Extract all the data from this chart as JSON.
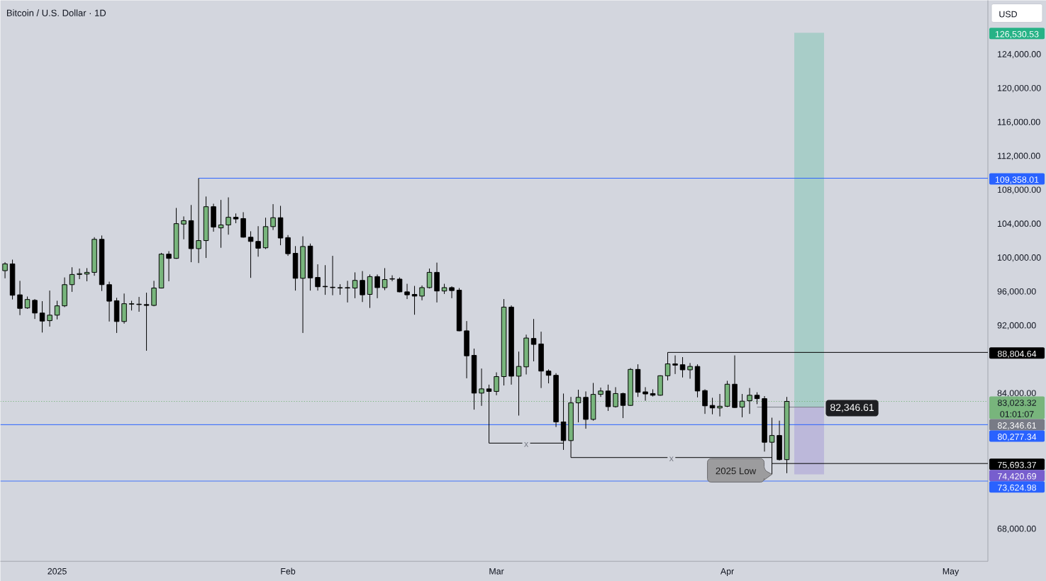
{
  "chart_data": {
    "type": "candlestick",
    "title": "Bitcoin / U.S. Dollar · 1D",
    "ylabel": "USD",
    "x": [
      "2024-12-25",
      "2024-12-26",
      "2024-12-27",
      "2024-12-28",
      "2024-12-29",
      "2024-12-30",
      "2024-12-31",
      "2025-01-01",
      "2025-01-02",
      "2025-01-03",
      "2025-01-04",
      "2025-01-05",
      "2025-01-06",
      "2025-01-07",
      "2025-01-08",
      "2025-01-09",
      "2025-01-10",
      "2025-01-11",
      "2025-01-12",
      "2025-01-13",
      "2025-01-14",
      "2025-01-15",
      "2025-01-16",
      "2025-01-17",
      "2025-01-18",
      "2025-01-19",
      "2025-01-20",
      "2025-01-21",
      "2025-01-22",
      "2025-01-23",
      "2025-01-24",
      "2025-01-25",
      "2025-01-26",
      "2025-01-27",
      "2025-01-28",
      "2025-01-29",
      "2025-01-30",
      "2025-01-31",
      "2025-02-01",
      "2025-02-02",
      "2025-02-03",
      "2025-02-04",
      "2025-02-05",
      "2025-02-06",
      "2025-02-07",
      "2025-02-08",
      "2025-02-09",
      "2025-02-10",
      "2025-02-11",
      "2025-02-12",
      "2025-02-13",
      "2025-02-14",
      "2025-02-15",
      "2025-02-16",
      "2025-02-17",
      "2025-02-18",
      "2025-02-19",
      "2025-02-20",
      "2025-02-21",
      "2025-02-22",
      "2025-02-23",
      "2025-02-24",
      "2025-02-25",
      "2025-02-26",
      "2025-02-27",
      "2025-02-28",
      "2025-03-01",
      "2025-03-02",
      "2025-03-03",
      "2025-03-04",
      "2025-03-05",
      "2025-03-06",
      "2025-03-07",
      "2025-03-08",
      "2025-03-09",
      "2025-03-10",
      "2025-03-11",
      "2025-03-12",
      "2025-03-13",
      "2025-03-14",
      "2025-03-15",
      "2025-03-16",
      "2025-03-17",
      "2025-03-18",
      "2025-03-19",
      "2025-03-20",
      "2025-03-21",
      "2025-03-22",
      "2025-03-23",
      "2025-03-24",
      "2025-03-25",
      "2025-03-26",
      "2025-03-27",
      "2025-03-28",
      "2025-03-29",
      "2025-03-30",
      "2025-03-31",
      "2025-04-01",
      "2025-04-02",
      "2025-04-03",
      "2025-04-04",
      "2025-04-05",
      "2025-04-06",
      "2025-04-07",
      "2025-04-08",
      "2025-04-09"
    ],
    "ohlc": [
      [
        98450,
        99450,
        97550,
        99250
      ],
      [
        99250,
        99750,
        95050,
        95550
      ],
      [
        95600,
        97250,
        93200,
        94000
      ],
      [
        94050,
        95400,
        93950,
        95050
      ],
      [
        94950,
        95100,
        92750,
        93450
      ],
      [
        93450,
        94850,
        91150,
        92500
      ],
      [
        92550,
        96100,
        91850,
        93200
      ],
      [
        93200,
        94900,
        92700,
        94300
      ],
      [
        94300,
        97650,
        94150,
        96800
      ],
      [
        96800,
        98850,
        95950,
        98000
      ],
      [
        98000,
        98700,
        97450,
        98100
      ],
      [
        98050,
        98750,
        97200,
        98250
      ],
      [
        98250,
        102400,
        97850,
        102150
      ],
      [
        102150,
        102600,
        96050,
        96800
      ],
      [
        96800,
        97150,
        92450,
        94850
      ],
      [
        94900,
        95250,
        91100,
        92450
      ],
      [
        92450,
        95750,
        92200,
        94550
      ],
      [
        94500,
        94900,
        93750,
        94550
      ],
      [
        94500,
        95350,
        93600,
        94450
      ],
      [
        94450,
        95850,
        89000,
        94350
      ],
      [
        94350,
        97250,
        94250,
        96400
      ],
      [
        96400,
        100550,
        96350,
        100400
      ],
      [
        100400,
        100750,
        97200,
        99900
      ],
      [
        99900,
        105850,
        99850,
        104000
      ],
      [
        103950,
        104850,
        102150,
        104350
      ],
      [
        104350,
        106200,
        99450,
        101050
      ],
      [
        101050,
        109358.01,
        99350,
        102000
      ],
      [
        102000,
        107200,
        99950,
        106000
      ],
      [
        106000,
        106350,
        103050,
        103600
      ],
      [
        103500,
        106800,
        101150,
        103850
      ],
      [
        103850,
        107100,
        102700,
        104750
      ],
      [
        104750,
        105200,
        104050,
        104550
      ],
      [
        104600,
        105350,
        102350,
        102400
      ],
      [
        102400,
        103100,
        97600,
        101900
      ],
      [
        101900,
        103700,
        100100,
        101100
      ],
      [
        101150,
        104700,
        101000,
        103650
      ],
      [
        103650,
        106300,
        103250,
        104700
      ],
      [
        104700,
        106100,
        101450,
        102300
      ],
      [
        102350,
        102650,
        100200,
        100450
      ],
      [
        100500,
        101350,
        96100,
        97550
      ],
      [
        97550,
        102500,
        91100,
        101300
      ],
      [
        101350,
        101650,
        96100,
        97600
      ],
      [
        97650,
        99200,
        96100,
        96550
      ],
      [
        96600,
        99100,
        95600,
        96550
      ],
      [
        96500,
        100200,
        95550,
        96450
      ],
      [
        96400,
        96850,
        95600,
        96450
      ],
      [
        96450,
        97250,
        94700,
        96400
      ],
      [
        96400,
        98250,
        95200,
        97300
      ],
      [
        97300,
        98400,
        94750,
        95600
      ],
      [
        95650,
        98000,
        94050,
        97750
      ],
      [
        97750,
        98000,
        95200,
        96450
      ],
      [
        96450,
        98750,
        96150,
        97400
      ],
      [
        97500,
        97900,
        97200,
        97450
      ],
      [
        97450,
        97650,
        95900,
        95950
      ],
      [
        95950,
        96900,
        95100,
        95600
      ],
      [
        95650,
        96650,
        93250,
        95450
      ],
      [
        95450,
        96700,
        94950,
        96450
      ],
      [
        96450,
        98700,
        96350,
        98250
      ],
      [
        98250,
        99400,
        94700,
        96050
      ],
      [
        96050,
        96900,
        95700,
        96450
      ],
      [
        96450,
        96600,
        95200,
        96100
      ],
      [
        96150,
        96400,
        91300,
        91350
      ],
      [
        91350,
        92500,
        85750,
        88400
      ],
      [
        88450,
        89250,
        82050,
        84000
      ],
      [
        84000,
        86900,
        82500,
        84500
      ],
      [
        84500,
        85000,
        78100,
        84200
      ],
      [
        84200,
        86450,
        83750,
        85950
      ],
      [
        85950,
        95100,
        84900,
        94150
      ],
      [
        94150,
        94350,
        85000,
        86000
      ],
      [
        86000,
        88900,
        81350,
        87150
      ],
      [
        87100,
        90900,
        86200,
        90500
      ],
      [
        90450,
        92750,
        87750,
        89750
      ],
      [
        89800,
        91250,
        84600,
        86600
      ],
      [
        86600,
        86800,
        85150,
        86100
      ],
      [
        86100,
        86350,
        80000,
        80600
      ],
      [
        80600,
        83950,
        77300,
        78400
      ],
      [
        78400,
        83550,
        76400,
        82850
      ],
      [
        82850,
        84400,
        80550,
        83500
      ],
      [
        83500,
        84200,
        79800,
        80900
      ],
      [
        80900,
        85200,
        80750,
        83850
      ],
      [
        83850,
        84650,
        83550,
        84250
      ],
      [
        84250,
        85000,
        81900,
        82400
      ],
      [
        82400,
        84700,
        82300,
        83950
      ],
      [
        83950,
        84050,
        81050,
        82550
      ],
      [
        82550,
        86950,
        82500,
        86800
      ],
      [
        86800,
        87400,
        83550,
        84100
      ],
      [
        84150,
        84700,
        83100,
        83900
      ],
      [
        83950,
        84450,
        83600,
        83750
      ],
      [
        83750,
        86100,
        83700,
        86050
      ],
      [
        86050,
        88804.64,
        85500,
        87450
      ],
      [
        87450,
        88450,
        86250,
        87300
      ],
      [
        87350,
        88250,
        85850,
        86750
      ],
      [
        86750,
        87550,
        85700,
        87150
      ],
      [
        87150,
        87400,
        83500,
        84250
      ],
      [
        84300,
        84450,
        81550,
        82500
      ],
      [
        82550,
        83450,
        81500,
        82250
      ],
      [
        82250,
        83900,
        81250,
        82450
      ],
      [
        82450,
        85450,
        82350,
        85050
      ],
      [
        85050,
        88450,
        82250,
        82300
      ],
      [
        82350,
        83900,
        81150,
        83050
      ],
      [
        83100,
        84600,
        81550,
        83750
      ],
      [
        83750,
        84100,
        82700,
        83350
      ],
      [
        83350,
        83650,
        77100,
        78200
      ],
      [
        78200,
        81100,
        74420.69,
        79000
      ],
      [
        79000,
        80750,
        76050,
        76150
      ],
      [
        76150,
        83550,
        74550,
        83023.32
      ]
    ],
    "colors": [
      "#78b57c",
      "#000000",
      "#000000",
      "#78b57c",
      "#000000",
      "#000000",
      "#78b57c",
      "#78b57c",
      "#78b57c",
      "#78b57c",
      "#78b57c",
      "#78b57c",
      "#78b57c",
      "#000000",
      "#000000",
      "#000000",
      "#78b57c",
      "#78b57c",
      "#000000",
      "#000000",
      "#78b57c",
      "#78b57c",
      "#000000",
      "#78b57c",
      "#78b57c",
      "#000000",
      "#78b57c",
      "#78b57c",
      "#000000",
      "#78b57c",
      "#78b57c",
      "#000000",
      "#000000",
      "#000000",
      "#000000",
      "#78b57c",
      "#78b57c",
      "#000000",
      "#000000",
      "#000000",
      "#78b57c",
      "#000000",
      "#000000",
      "#000000",
      "#000000",
      "#78b57c",
      "#000000",
      "#78b57c",
      "#000000",
      "#78b57c",
      "#000000",
      "#78b57c",
      "#000000",
      "#000000",
      "#000000",
      "#000000",
      "#78b57c",
      "#78b57c",
      "#000000",
      "#78b57c",
      "#000000",
      "#000000",
      "#000000",
      "#000000",
      "#78b57c",
      "#000000",
      "#78b57c",
      "#78b57c",
      "#000000",
      "#78b57c",
      "#78b57c",
      "#000000",
      "#000000",
      "#000000",
      "#000000",
      "#000000",
      "#78b57c",
      "#78b57c",
      "#000000",
      "#78b57c",
      "#78b57c",
      "#000000",
      "#78b57c",
      "#000000",
      "#78b57c",
      "#000000",
      "#000000",
      "#000000",
      "#78b57c",
      "#78b57c",
      "#000000",
      "#000000",
      "#78b57c",
      "#000000",
      "#000000",
      "#000000",
      "#78b57c",
      "#78b57c",
      "#000000",
      "#78b57c",
      "#78b57c",
      "#000000",
      "#000000",
      "#78b57c",
      "#000000",
      "#78b57c"
    ],
    "xlim": [
      "2024-12-24T09:00",
      "2025-05-06"
    ],
    "xticks": [
      {
        "value": "2025-01-01",
        "label": "2025"
      },
      {
        "value": "2025-02-01",
        "label": "Feb"
      },
      {
        "value": "2025-03-01",
        "label": "Mar"
      },
      {
        "value": "2025-04-01",
        "label": "Apr"
      },
      {
        "value": "2025-05-01",
        "label": "May"
      }
    ],
    "ylim": [
      64150,
      130350
    ],
    "yticks": [
      {
        "value": 68000,
        "label": "68,000.00"
      },
      {
        "value": 84000,
        "label": "84,000.00"
      },
      {
        "value": 92000,
        "label": "92,000.00"
      },
      {
        "value": 96000,
        "label": "96,000.00"
      },
      {
        "value": 100000,
        "label": "100,000.00"
      },
      {
        "value": 104000,
        "label": "104,000.00"
      },
      {
        "value": 108000,
        "label": "108,000.00"
      },
      {
        "value": 112000,
        "label": "112,000.00"
      },
      {
        "value": 116000,
        "label": "116,000.00"
      },
      {
        "value": 120000,
        "label": "120,000.00"
      },
      {
        "value": 124000,
        "label": "124,000.00"
      }
    ],
    "series": [
      {
        "type": "bar",
        "x": [
          "2025-04-12"
        ],
        "base": [
          82346.61
        ],
        "values": [
          44183.92
        ],
        "color": "#a8cdc8"
      },
      {
        "type": "bar",
        "x": [
          "2025-04-12"
        ],
        "base": [
          82346.61
        ],
        "values": [
          -7925.92
        ],
        "color": "#bcb8da"
      },
      {
        "type": "line",
        "x": [
          "2025-01-20",
          "2025-05-06"
        ],
        "values": [
          109358.01,
          109358.01
        ],
        "color": "#2962ff",
        "value_labels": [
          null,
          "109,358.01"
        ]
      },
      {
        "type": "line",
        "x": [
          "2025-03-24",
          "2025-05-06"
        ],
        "values": [
          88804.64,
          88804.64
        ],
        "color": "#000000",
        "value_labels": [
          null,
          "88,804.64"
        ]
      },
      {
        "type": "line",
        "x": [
          "2025-04-07",
          "2025-05-06"
        ],
        "values": [
          75693.37,
          75693.37
        ],
        "color": "#000000",
        "value_labels": [
          null,
          "75,693.37"
        ]
      },
      {
        "type": "line",
        "x": [
          "2025-02-28",
          "2025-03-10"
        ],
        "values": [
          78100,
          78100
        ],
        "color": "#000000"
      },
      {
        "type": "line",
        "x": [
          "2025-03-11",
          "2025-04-07"
        ],
        "values": [
          76400,
          76400
        ],
        "color": "#000000"
      },
      {
        "type": "line",
        "x": [
          "2025-04-05",
          "2025-04-14"
        ],
        "values": [
          82346.61,
          82346.61
        ],
        "color": "#787b86",
        "value_labels": [
          null,
          "82,346.61"
        ]
      }
    ],
    "ref_lines": [
      {
        "axis": "y",
        "value": 83023.32,
        "label": "83,023.32",
        "color": "#78b57c",
        "line_style": "dotted"
      },
      {
        "axis": "y",
        "value": 80277.34,
        "label": "80,277.34",
        "color": "#2962ff"
      },
      {
        "axis": "y",
        "value": 73624.98,
        "label": "73,624.98",
        "color": "#2962ff"
      }
    ],
    "annotations": [
      {
        "text": "x",
        "x": "2025-03-05",
        "y": 78100
      },
      {
        "text": "x",
        "x": "2025-03-24T12:00",
        "y": 76400
      },
      {
        "text": "2025 Low",
        "x": "2025-04-07",
        "y": 74420.69
      },
      "126,530.53",
      "74,420.69",
      "82,346.61",
      "01:01:07"
    ]
  }
}
